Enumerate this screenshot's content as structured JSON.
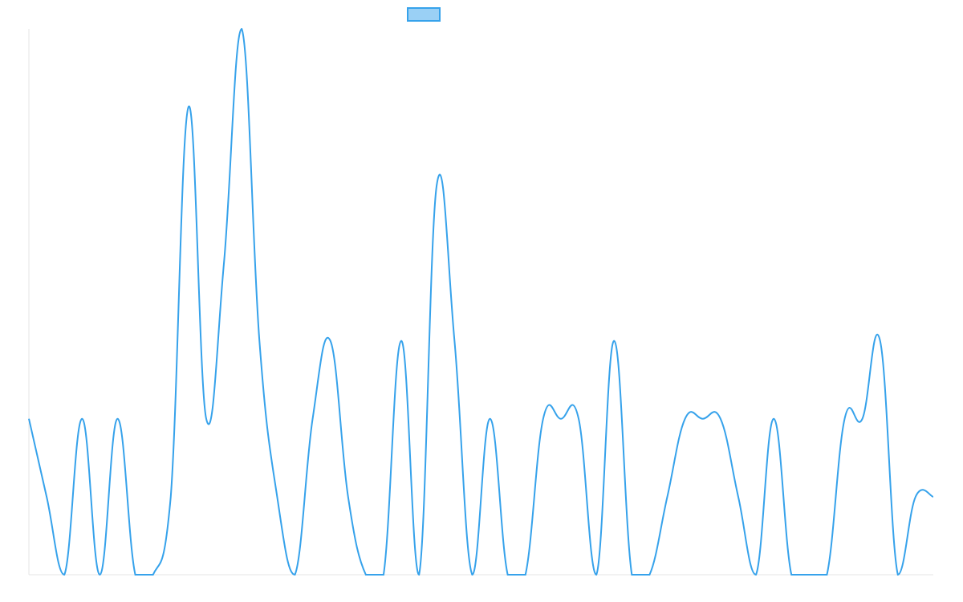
{
  "chart_data": {
    "type": "line",
    "title": "",
    "xlabel": "",
    "ylabel": "",
    "grid": false,
    "legend": {
      "placement": "top-center",
      "entries": [
        {
          "name": ""
        }
      ]
    },
    "colors": {
      "line": "#36a2eb",
      "legend_fill": "#9ad0f5",
      "axis": "#e5e5e5"
    },
    "ylim": [
      0,
      7
    ],
    "x": [
      0,
      1,
      2,
      3,
      4,
      5,
      6,
      7,
      8,
      9,
      10,
      11,
      12,
      13,
      14,
      15,
      16,
      17,
      18,
      19,
      20,
      21,
      22,
      23,
      24,
      25,
      26,
      27,
      28,
      29,
      30,
      31,
      32,
      33,
      34,
      35,
      36,
      37,
      38,
      39,
      40,
      41,
      42,
      43,
      44,
      45,
      46,
      47,
      48,
      49,
      50,
      51
    ],
    "series": [
      {
        "name": "",
        "values": [
          2,
          1,
          0,
          2,
          0,
          2,
          0,
          0,
          1,
          6,
          2,
          4,
          7,
          3,
          1,
          0,
          2,
          3,
          1,
          0,
          0,
          3,
          0,
          5,
          3,
          0,
          2,
          0,
          0,
          2,
          2,
          2,
          0,
          3,
          0,
          0,
          1,
          2,
          2,
          2,
          1,
          0,
          2,
          0,
          0,
          0,
          2,
          2,
          3,
          0,
          1,
          1
        ]
      }
    ]
  }
}
